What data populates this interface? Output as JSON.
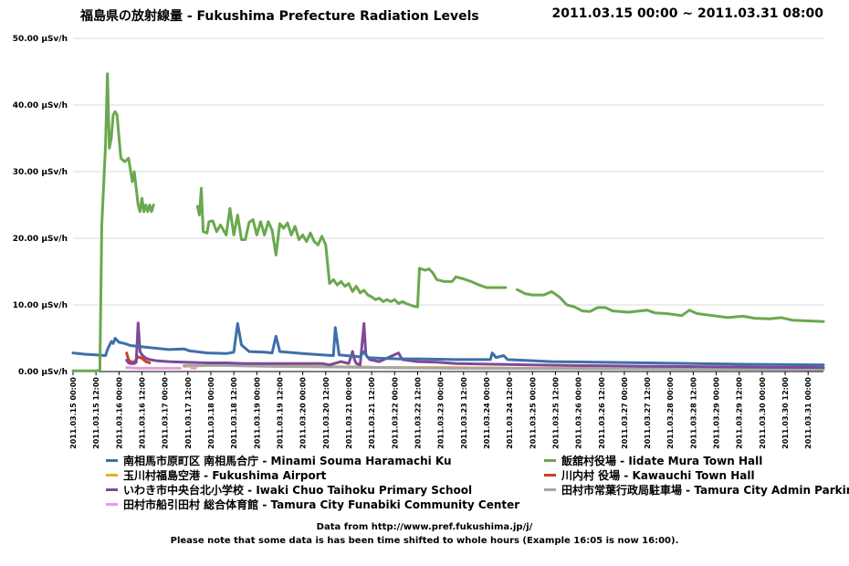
{
  "header": {
    "title": "福島県の放射線量 - Fukushima Prefecture Radiation Levels",
    "date_range": "2011.03.15 00:00 ~ 2011.03.31 08:00"
  },
  "footer": {
    "line1": "Data from http://www.pref.fukushima.jp/j/",
    "line2": "Please note that some data is has been time shifted to whole hours (Example 16:05 is now 16:00)."
  },
  "chart_data": {
    "type": "line",
    "title": "福島県の放射線量 - Fukushima Prefecture Radiation Levels",
    "xlabel": "",
    "ylabel": "",
    "x_unit": "hours since 2011.03.15 00:00",
    "xlim": [
      0,
      392
    ],
    "ylim": [
      0,
      50
    ],
    "y_ticks": [
      0,
      10,
      20,
      30,
      40,
      50
    ],
    "y_tick_labels": [
      "0.00 µSv/h",
      "10.00 µSv/h",
      "20.00 µSv/h",
      "30.00 µSv/h",
      "40.00 µSv/h",
      "50.00 µSv/h"
    ],
    "x_tick_labels": [
      "2011.03.15 00:00",
      "2011.03.15 12:00",
      "2011.03.16 00:00",
      "2011.03.16 12:00",
      "2011.03.17 00:00",
      "2011.03.17 12:00",
      "2011.03.18 00:00",
      "2011.03.18 12:00",
      "2011.03.19 00:00",
      "2011.03.19 12:00",
      "2011.03.20 00:00",
      "2011.03.20 12:00",
      "2011.03.21 00:00",
      "2011.03.21 12:00",
      "2011.03.22 00:00",
      "2011.03.22 12:00",
      "2011.03.23 00:00",
      "2011.03.23 12:00",
      "2011.03.24 00:00",
      "2011.03.24 12:00",
      "2011.03.25 00:00",
      "2011.03.25 12:00",
      "2011.03.26 00:00",
      "2011.03.26 12:00",
      "2011.03.27 00:00",
      "2011.03.27 12:00",
      "2011.03.28 00:00",
      "2011.03.28 12:00",
      "2011.03.29 00:00",
      "2011.03.29 12:00",
      "2011.03.30 00:00",
      "2011.03.30 12:00",
      "2011.03.31 00:00"
    ],
    "grid": true,
    "legend_position": "bottom",
    "series": [
      {
        "name": "南相馬市原町区 南相馬合庁 - Minami Souma Haramachi Ku",
        "color": "#3f6fa8",
        "points": [
          [
            0,
            2.8
          ],
          [
            6,
            2.6
          ],
          [
            12,
            2.5
          ],
          [
            17,
            2.4
          ],
          [
            18,
            3.3
          ],
          [
            20,
            4.5
          ],
          [
            21,
            4.2
          ],
          [
            22,
            5.0
          ],
          [
            24,
            4.4
          ],
          [
            27,
            4.2
          ],
          [
            30,
            3.9
          ],
          [
            40,
            3.6
          ],
          [
            50,
            3.3
          ],
          [
            58,
            3.4
          ],
          [
            61,
            3.1
          ],
          [
            70,
            2.8
          ],
          [
            80,
            2.7
          ],
          [
            84,
            2.9
          ],
          [
            86,
            7.2
          ],
          [
            88,
            4.0
          ],
          [
            92,
            3.0
          ],
          [
            100,
            2.9
          ],
          [
            104,
            2.8
          ],
          [
            106,
            5.3
          ],
          [
            108,
            3.0
          ],
          [
            120,
            2.7
          ],
          [
            130,
            2.5
          ],
          [
            136,
            2.4
          ],
          [
            137,
            6.6
          ],
          [
            139,
            2.5
          ],
          [
            150,
            2.2
          ],
          [
            152,
            3.0
          ],
          [
            154,
            2.1
          ],
          [
            160,
            2.0
          ],
          [
            170,
            1.9
          ],
          [
            180,
            1.9
          ],
          [
            200,
            1.8
          ],
          [
            218,
            1.8
          ],
          [
            219,
            2.8
          ],
          [
            221,
            2.1
          ],
          [
            225,
            2.4
          ],
          [
            227,
            1.8
          ],
          [
            250,
            1.5
          ],
          [
            300,
            1.3
          ],
          [
            350,
            1.1
          ],
          [
            392,
            1.0
          ]
        ]
      },
      {
        "name": "飯舘村役場 - Iidate Mura Town Hall",
        "color": "#6aa84f",
        "points": [
          [
            0,
            0.1
          ],
          [
            12,
            0.1
          ],
          [
            14,
            0.2
          ],
          [
            15,
            22
          ],
          [
            17,
            34
          ],
          [
            18,
            44.7
          ],
          [
            19,
            33.5
          ],
          [
            20,
            35
          ],
          [
            21,
            38.5
          ],
          [
            22,
            39
          ],
          [
            23,
            38.5
          ],
          [
            25,
            32
          ],
          [
            27,
            31.5
          ],
          [
            29,
            32
          ],
          [
            31,
            28.5
          ],
          [
            32,
            30
          ],
          [
            34,
            25
          ],
          [
            35,
            24
          ],
          [
            36,
            26
          ],
          [
            37,
            24
          ],
          [
            38,
            25
          ],
          [
            39,
            24
          ],
          [
            40,
            25
          ],
          [
            41,
            24
          ],
          [
            42,
            25
          ],
          null,
          [
            65,
            24.8
          ],
          [
            66,
            23.5
          ],
          [
            67,
            27.5
          ],
          [
            68,
            21
          ],
          [
            70,
            20.8
          ],
          [
            71,
            22.5
          ],
          [
            73,
            22.6
          ],
          [
            75,
            21
          ],
          [
            77,
            22
          ],
          [
            80,
            20.5
          ],
          [
            82,
            24.5
          ],
          [
            84,
            20.5
          ],
          [
            86,
            23.5
          ],
          [
            88,
            19.8
          ],
          [
            90,
            19.8
          ],
          [
            92,
            22.4
          ],
          [
            94,
            22.8
          ],
          [
            96,
            20.5
          ],
          [
            98,
            22.5
          ],
          [
            100,
            20.5
          ],
          [
            102,
            22.5
          ],
          [
            104,
            21.2
          ],
          [
            106,
            17.5
          ],
          [
            108,
            22.2
          ],
          [
            110,
            21.5
          ],
          [
            112,
            22.3
          ],
          [
            114,
            20.5
          ],
          [
            116,
            21.8
          ],
          [
            118,
            19.8
          ],
          [
            120,
            20.5
          ],
          [
            122,
            19.5
          ],
          [
            124,
            20.8
          ],
          [
            126,
            19.5
          ],
          [
            128,
            19
          ],
          [
            130,
            20.3
          ],
          [
            132,
            19
          ],
          [
            134,
            13.2
          ],
          [
            136,
            13.8
          ],
          [
            138,
            13
          ],
          [
            140,
            13.5
          ],
          [
            142,
            12.8
          ],
          [
            144,
            13.2
          ],
          [
            146,
            12
          ],
          [
            148,
            12.8
          ],
          [
            150,
            11.8
          ],
          [
            152,
            12.2
          ],
          [
            154,
            11.5
          ],
          [
            156,
            11.2
          ],
          [
            158,
            10.8
          ],
          [
            160,
            11
          ],
          [
            162,
            10.5
          ],
          [
            164,
            10.8
          ],
          [
            166,
            10.5
          ],
          [
            168,
            10.8
          ],
          [
            170,
            10.2
          ],
          [
            172,
            10.5
          ],
          [
            174,
            10.2
          ],
          [
            176,
            10
          ],
          [
            178,
            9.8
          ],
          [
            180,
            9.7
          ],
          [
            181,
            15.5
          ],
          [
            184,
            15.2
          ],
          [
            186,
            15.4
          ],
          [
            188,
            14.8
          ],
          [
            190,
            13.8
          ],
          [
            194,
            13.5
          ],
          [
            198,
            13.5
          ],
          [
            200,
            14.2
          ],
          [
            204,
            13.9
          ],
          [
            208,
            13.5
          ],
          [
            212,
            13
          ],
          [
            216,
            12.6
          ],
          [
            222,
            12.6
          ],
          [
            226,
            12.6
          ],
          null,
          [
            232,
            12.3
          ],
          [
            236,
            11.7
          ],
          [
            240,
            11.5
          ],
          [
            246,
            11.5
          ],
          [
            250,
            12
          ],
          [
            254,
            11.2
          ],
          [
            258,
            10
          ],
          [
            262,
            9.7
          ],
          [
            266,
            9.1
          ],
          [
            270,
            9
          ],
          [
            274,
            9.6
          ],
          [
            278,
            9.6
          ],
          [
            282,
            9.1
          ],
          [
            290,
            8.9
          ],
          [
            300,
            9.2
          ],
          [
            304,
            8.8
          ],
          [
            310,
            8.7
          ],
          [
            318,
            8.4
          ],
          [
            322,
            9.2
          ],
          [
            326,
            8.7
          ],
          [
            334,
            8.4
          ],
          [
            342,
            8.1
          ],
          [
            350,
            8.3
          ],
          [
            356,
            8.0
          ],
          [
            364,
            7.9
          ],
          [
            370,
            8.1
          ],
          [
            376,
            7.7
          ],
          [
            384,
            7.6
          ],
          [
            392,
            7.5
          ]
        ]
      },
      {
        "name": "玉川村福島空港 - Fukushima Airport",
        "color": "#f0a830",
        "points": [
          [
            58,
            0.8
          ],
          [
            70,
            0.9
          ],
          [
            80,
            1.2
          ],
          [
            90,
            0.9
          ],
          [
            100,
            0.9
          ],
          [
            110,
            0.9
          ],
          [
            120,
            0.8
          ],
          [
            130,
            0.8
          ],
          [
            140,
            0.7
          ],
          [
            150,
            0.7
          ],
          [
            160,
            0.6
          ],
          [
            170,
            0.6
          ],
          [
            180,
            0.6
          ],
          [
            190,
            0.6
          ],
          [
            200,
            0.6
          ],
          [
            210,
            0.55
          ],
          [
            220,
            0.55
          ],
          [
            230,
            0.5
          ],
          [
            240,
            0.5
          ],
          [
            260,
            0.5
          ],
          [
            280,
            0.45
          ],
          [
            300,
            0.45
          ],
          [
            320,
            0.4
          ],
          [
            340,
            0.4
          ],
          [
            360,
            0.4
          ],
          [
            380,
            0.35
          ],
          [
            392,
            0.35
          ]
        ]
      },
      {
        "name": "川内村 役場 - Kawauchi Town Hall",
        "color": "#cc4125",
        "points": [
          [
            28,
            2.8
          ],
          [
            29,
            1.8
          ],
          [
            30,
            1.5
          ],
          [
            32,
            1.4
          ],
          [
            34,
            2.2
          ],
          [
            36,
            2.0
          ],
          [
            38,
            1.5
          ],
          [
            40,
            1.3
          ]
        ]
      },
      {
        "name": "いわき市中央台北小学校 - Iwaki Chuo Taihoku Primary School",
        "color": "#7d4a98",
        "points": [
          [
            28,
            1.7
          ],
          [
            29,
            1.3
          ],
          [
            30,
            1.2
          ],
          [
            32,
            1.2
          ],
          [
            33,
            1.4
          ],
          [
            34,
            7.3
          ],
          [
            35,
            3
          ],
          [
            36,
            2.5
          ],
          [
            38,
            2
          ],
          [
            40,
            1.8
          ],
          [
            44,
            1.6
          ],
          [
            50,
            1.5
          ],
          [
            58,
            1.4
          ],
          [
            70,
            1.3
          ],
          [
            80,
            1.3
          ],
          [
            90,
            1.2
          ],
          [
            100,
            1.2
          ],
          [
            110,
            1.2
          ],
          [
            120,
            1.2
          ],
          [
            130,
            1.2
          ],
          [
            134,
            1.0
          ],
          [
            140,
            1.5
          ],
          [
            144,
            1.2
          ],
          [
            146,
            3.0
          ],
          [
            147,
            1.8
          ],
          [
            148,
            1.2
          ],
          [
            150,
            1.0
          ],
          [
            152,
            7.2
          ],
          [
            153,
            2.5
          ],
          [
            155,
            1.8
          ],
          [
            160,
            1.5
          ],
          [
            170,
            2.8
          ],
          [
            172,
            1.8
          ],
          [
            180,
            1.5
          ],
          [
            190,
            1.4
          ],
          [
            200,
            1.2
          ],
          [
            220,
            1.1
          ],
          [
            240,
            1.0
          ],
          [
            260,
            0.9
          ],
          [
            280,
            0.85
          ],
          [
            300,
            0.8
          ],
          [
            320,
            0.75
          ],
          [
            340,
            0.7
          ],
          [
            360,
            0.65
          ],
          [
            392,
            0.6
          ]
        ]
      },
      {
        "name": "田村市常葉行政局駐車場 - Tamura City Admin Parking",
        "color": "#a6a6a6",
        "points": [
          [
            58,
            0.9
          ],
          [
            80,
            0.9
          ],
          [
            100,
            0.8
          ],
          [
            130,
            0.7
          ],
          [
            160,
            0.6
          ],
          [
            200,
            0.5
          ],
          [
            250,
            0.45
          ],
          [
            300,
            0.4
          ],
          [
            350,
            0.35
          ],
          [
            392,
            0.3
          ]
        ]
      },
      {
        "name": "田村市船引田村 総合体育館 - Tamura City Funabiki Community Center",
        "color": "#e39ee0",
        "points": [
          [
            28,
            0.6
          ],
          [
            34,
            0.5
          ],
          [
            40,
            0.5
          ],
          [
            50,
            0.5
          ],
          [
            56,
            0.5
          ],
          null,
          [
            62,
            0.5
          ],
          [
            64,
            0.5
          ]
        ]
      }
    ]
  }
}
